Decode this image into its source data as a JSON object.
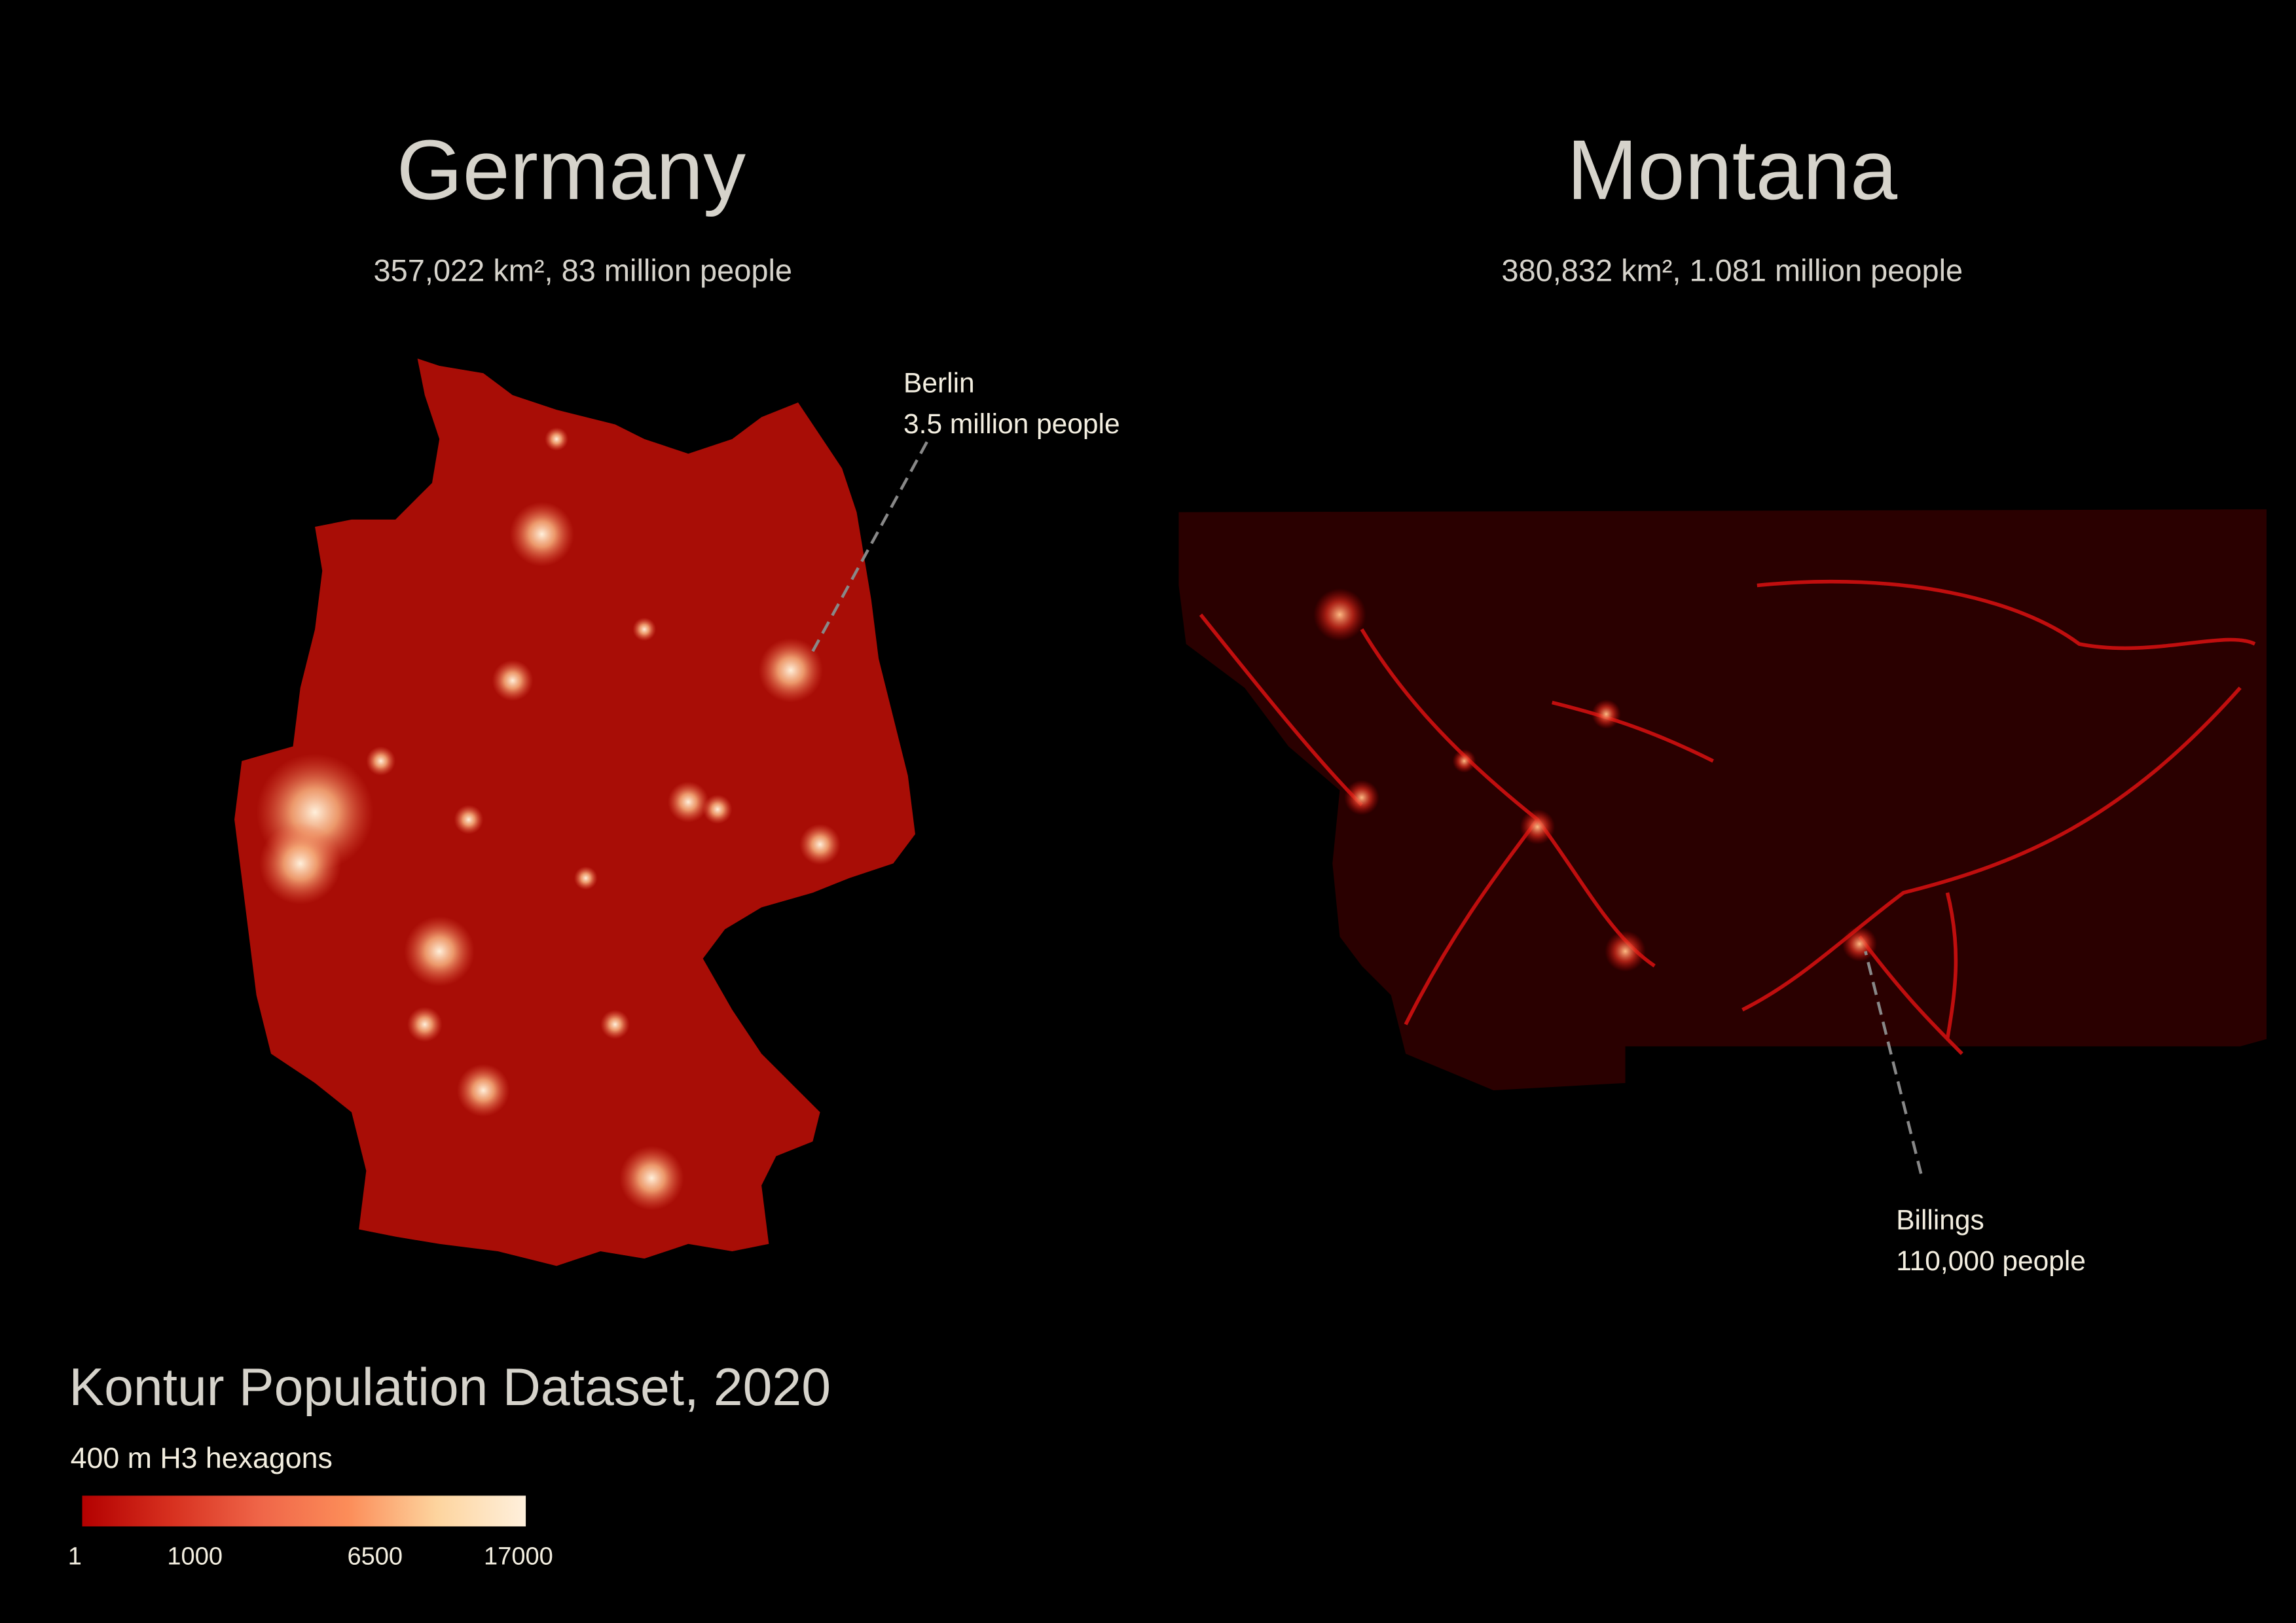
{
  "germany": {
    "title": "Germany",
    "subtitle": "357,022 km², 83 million people",
    "annotation": {
      "name": "Berlin",
      "value": "3.5 million people"
    }
  },
  "montana": {
    "title": "Montana",
    "subtitle": "380,832 km², 1.081 million people",
    "annotation": {
      "name": "Billings",
      "value": "110,000 people"
    }
  },
  "legend": {
    "title": "Kontur Population Dataset, 2020",
    "subtitle": "400 m H3 hexagons",
    "ticks": [
      "1",
      "1000",
      "6500",
      "17000"
    ],
    "colors": [
      "#b30000",
      "#d7301f",
      "#ef6548",
      "#fc8d59",
      "#fdbb84",
      "#fdd49e",
      "#fff0dc"
    ]
  }
}
